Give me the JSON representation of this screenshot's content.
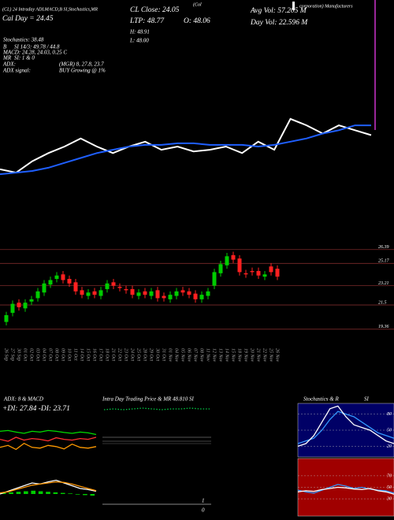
{
  "header": {
    "study": "(CL) 24 Intraday ADLMACD,B SI,Stochastics,MR",
    "day": "Cal Day = 24.45",
    "close": "CL Close: 24.05",
    "ltp": "LTP: 48.77",
    "open": "O: 48.06",
    "high": "H: 48.91",
    "low": "L: 48.00",
    "avg_vol": "Avg Vol: 57.205 M",
    "day_vol": "Day Vol: 22.596  M",
    "company_a": "(Col",
    "company_b": "corporation) Manufacturers",
    "stochastics": "Stochastics: 38.48",
    "b": "B",
    "si": "SI 14/3: 49.78 / 44.8",
    "macd": "MACD: 24.28, 24.03, 0.25 C",
    "mr": "MR",
    "mr_si": "SI: 1 & 0",
    "adx": "ADX:",
    "adx_values": "(MGR) 8, 27.8, 23.7",
    "adx_signal": "ADX signal:",
    "adx_signal_value": "BUY Growing @ 1%"
  },
  "chart_data": [
    {
      "type": "line",
      "ylim": [
        15,
        30
      ],
      "series": [
        {
          "color": "#ffffff",
          "values": [
            19.6,
            19.4,
            20.1,
            20.6,
            21.0,
            21.5,
            21.0,
            20.6,
            21.0,
            21.3,
            20.8,
            21.0,
            20.7,
            20.8,
            21.0,
            20.6,
            21.3,
            20.8,
            22.7,
            22.3,
            21.8,
            22.3,
            22.0,
            21.7
          ]
        },
        {
          "color": "#1f5fff",
          "values": [
            19.3,
            19.4,
            19.5,
            19.7,
            20.0,
            20.3,
            20.6,
            20.8,
            21.0,
            21.1,
            21.1,
            21.2,
            21.2,
            21.1,
            21.1,
            21.1,
            21.0,
            21.1,
            21.3,
            21.5,
            21.8,
            22.0,
            22.3,
            22.3
          ]
        }
      ]
    },
    {
      "type": "candlestick",
      "categories": [
        "26 Sep",
        "27 Sep",
        "30 Sep",
        "01 Oct",
        "02 Oct",
        "03 Oct",
        "04 Oct",
        "07 Oct",
        "08 Oct",
        "09 Oct",
        "10 Oct",
        "11 Oct",
        "14 Oct",
        "15 Oct",
        "16 Oct",
        "17 Oct",
        "18 Oct",
        "21 Oct",
        "22 Oct",
        "23 Oct",
        "24 Oct",
        "25 Oct",
        "28 Oct",
        "29 Oct",
        "30 Oct",
        "31 Oct",
        "01 Nov",
        "04 Nov",
        "05 Nov",
        "06 Nov",
        "07 Nov",
        "08 Nov",
        "11 Nov",
        "12 Nov",
        "13 Nov",
        "14 Nov",
        "15 Nov",
        "18 Nov",
        "19 Nov",
        "20 Nov",
        "21 Nov",
        "22 Nov",
        "25 Nov",
        "26 Nov"
      ],
      "open": [
        20.0,
        20.8,
        21.7,
        21.2,
        21.8,
        22.1,
        22.6,
        23.3,
        23.8,
        24.2,
        23.8,
        23.5,
        22.8,
        22.3,
        22.7,
        22.3,
        22.9,
        23.5,
        23.1,
        22.9,
        22.9,
        22.3,
        22.7,
        22.3,
        22.8,
        22.3,
        22.0,
        22.3,
        22.8,
        22.7,
        22.5,
        22.0,
        22.3,
        23.2,
        24.3,
        25.0,
        25.9,
        25.6,
        24.3,
        24.5,
        24.5,
        24.0,
        24.9,
        24.7
      ],
      "high": [
        20.9,
        21.9,
        22.0,
        22.0,
        22.3,
        23.0,
        23.7,
        24.0,
        24.4,
        24.5,
        24.1,
        23.8,
        23.1,
        22.9,
        23.0,
        23.1,
        23.7,
        23.8,
        23.4,
        23.2,
        23.2,
        22.9,
        23.0,
        23.0,
        23.1,
        22.6,
        22.7,
        23.0,
        23.1,
        23.0,
        22.8,
        22.7,
        23.0,
        24.7,
        25.4,
        26.1,
        26.2,
        25.9,
        24.6,
        24.8,
        24.8,
        24.5,
        25.2,
        25.0
      ],
      "low": [
        19.7,
        20.5,
        21.0,
        20.9,
        21.5,
        21.8,
        22.3,
        23.0,
        23.5,
        23.4,
        23.1,
        22.4,
        22.1,
        22.0,
        22.1,
        22.0,
        22.6,
        22.9,
        22.7,
        22.5,
        22.1,
        22.0,
        22.1,
        22.0,
        21.8,
        21.8,
        21.7,
        22.0,
        22.3,
        22.1,
        21.7,
        21.7,
        22.0,
        22.9,
        24.0,
        24.7,
        25.2,
        24.1,
        23.9,
        24.1,
        23.8,
        23.7,
        24.1,
        23.7
      ],
      "close": [
        20.6,
        21.6,
        21.3,
        21.7,
        22.0,
        22.7,
        23.4,
        23.7,
        24.1,
        23.7,
        23.4,
        22.7,
        22.4,
        22.6,
        22.4,
        22.8,
        23.4,
        23.2,
        23.0,
        22.8,
        22.4,
        22.6,
        22.4,
        22.7,
        22.1,
        22.1,
        22.4,
        22.7,
        22.6,
        22.4,
        22.0,
        22.4,
        22.7,
        24.4,
        25.1,
        25.8,
        25.5,
        24.4,
        24.2,
        24.4,
        24.1,
        24.2,
        24.4,
        24.0
      ],
      "up_color": "#00cc00",
      "down_color": "#ff2020",
      "ylim": [
        19,
        27
      ],
      "yticks": [
        26.39,
        25.17,
        23.21,
        21.5,
        19.36
      ],
      "grid": true,
      "grid_color": "#7a2a2a"
    },
    {
      "type": "line",
      "title": "ADX: 8  & MACD",
      "subtitle": "+DI: 27.84 -DI: 23.71",
      "ylim": [
        0,
        100
      ],
      "series": [
        {
          "color": "#00dd00",
          "values": [
            60,
            62,
            58,
            55,
            60,
            58,
            62,
            60,
            57,
            55,
            58,
            56,
            52
          ]
        },
        {
          "color": "#ff3030",
          "values": [
            40,
            35,
            45,
            38,
            42,
            40,
            36,
            44,
            40,
            38,
            42,
            40,
            45
          ]
        },
        {
          "color": "#ff9900",
          "values": [
            20,
            25,
            15,
            30,
            20,
            18,
            25,
            22,
            16,
            28,
            20,
            18,
            22
          ]
        }
      ]
    },
    {
      "type": "line",
      "ylim": [
        0,
        100
      ],
      "series": [
        {
          "color": "#ffffff",
          "values": [
            40,
            45,
            50,
            55,
            60,
            58,
            62,
            65,
            60,
            55,
            50,
            48,
            45
          ]
        },
        {
          "color": "#ff9900",
          "values": [
            42,
            44,
            48,
            52,
            56,
            58,
            60,
            62,
            61,
            58,
            54,
            50,
            46
          ]
        }
      ],
      "histogram": {
        "color": "#00cc00",
        "base": 40,
        "values": [
          42,
          43,
          44,
          45,
          46,
          45,
          44,
          43,
          42,
          41,
          39,
          38,
          37
        ]
      }
    },
    {
      "type": "line",
      "title": "Intra Day Trading Price  & MR 48.810  SI",
      "ylim": [
        47.5,
        48.9
      ],
      "dashed": true,
      "series": [
        {
          "color": "#00cc44",
          "values": [
            48.8,
            48.81,
            48.8,
            48.81,
            48.82,
            48.81,
            48.8,
            48.81,
            48.81,
            48.82,
            48.81,
            48.81
          ]
        }
      ],
      "annotations": [
        "1",
        "0"
      ]
    },
    {
      "type": "line",
      "title": "Stochastics & R",
      "ylim": [
        0,
        100
      ],
      "yticks": [
        80,
        50,
        20
      ],
      "background": "#000066",
      "series": [
        {
          "color": "#3399ff",
          "values": [
            25,
            30,
            35,
            50,
            70,
            85,
            80,
            75,
            65,
            55,
            45,
            40,
            35
          ]
        },
        {
          "color": "#ffffff",
          "values": [
            20,
            25,
            40,
            65,
            90,
            95,
            75,
            60,
            55,
            50,
            40,
            30,
            25
          ]
        }
      ]
    },
    {
      "type": "line",
      "title": "SI",
      "ylim": [
        0,
        100
      ],
      "yticks": [
        70,
        50,
        30
      ],
      "background": "#a00000",
      "series": [
        {
          "color": "#3399ff",
          "values": [
            45,
            42,
            40,
            45,
            50,
            55,
            52,
            48,
            50,
            47,
            45,
            44,
            40
          ]
        },
        {
          "color": "#ffffff",
          "values": [
            42,
            44,
            43,
            46,
            48,
            50,
            49,
            47,
            46,
            48,
            44,
            42,
            38
          ]
        }
      ]
    }
  ]
}
